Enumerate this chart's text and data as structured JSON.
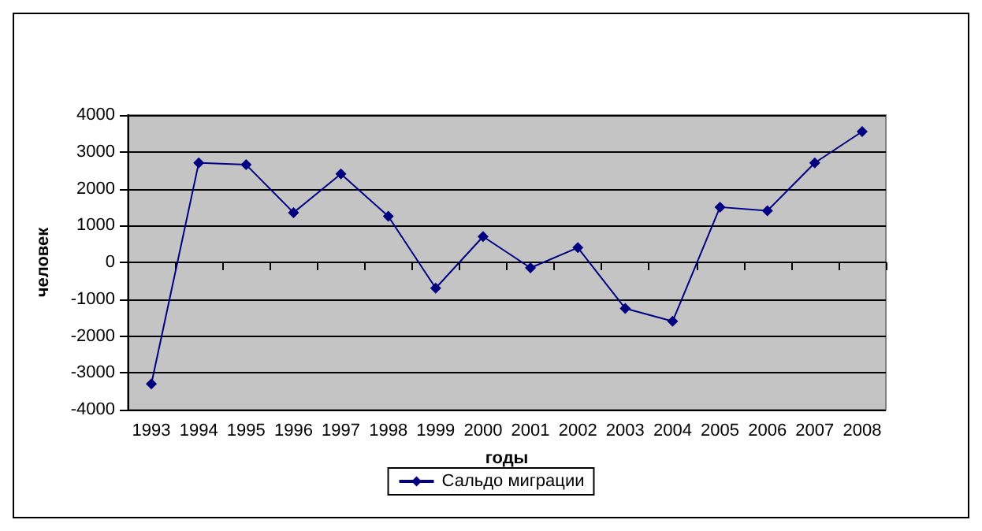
{
  "chart_data": {
    "type": "line",
    "xlabel": "годы",
    "ylabel": "человек",
    "categories": [
      "1993",
      "1994",
      "1995",
      "1996",
      "1997",
      "1998",
      "1999",
      "2000",
      "2001",
      "2002",
      "2003",
      "2004",
      "2005",
      "2006",
      "2007",
      "2008"
    ],
    "series": [
      {
        "name": "Сальдо миграции",
        "color": "#000080",
        "values": [
          -3300,
          2700,
          2650,
          1350,
          2400,
          1250,
          -700,
          700,
          -150,
          400,
          -1250,
          -1600,
          1500,
          1400,
          2700,
          3550
        ]
      }
    ],
    "ylim": [
      -4000,
      4000
    ],
    "yticks": [
      -4000,
      -3000,
      -2000,
      -1000,
      0,
      1000,
      2000,
      3000,
      4000
    ],
    "grid": "y",
    "legend": "bottom",
    "marker": "diamond",
    "line_style": "solid"
  }
}
